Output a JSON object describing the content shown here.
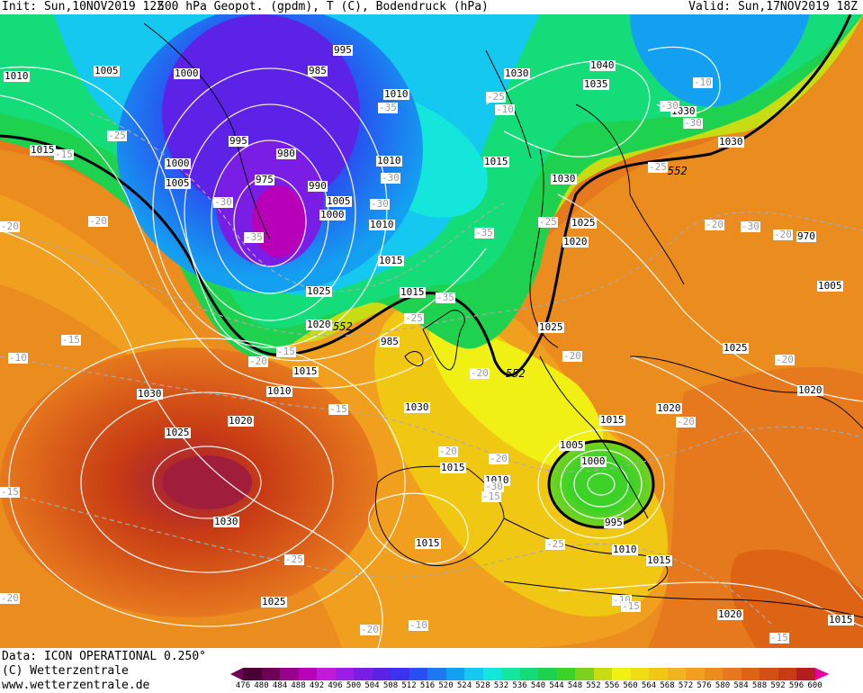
{
  "header": {
    "init": "Init: Sun,10NOV2019 12Z",
    "title": "500 hPa Geopot. (gpdm), T (C), Bodendruck (hPa)",
    "valid": "Valid: Sun,17NOV2019 18Z"
  },
  "footer": {
    "data_line": "Data: ICON OPERATIONAL 0.250°",
    "copyright": "(C) Wetterzentrale",
    "url": "www.wetterzentrale.de"
  },
  "legend": {
    "values": [
      "476",
      "480",
      "484",
      "488",
      "492",
      "496",
      "500",
      "504",
      "508",
      "512",
      "516",
      "520",
      "524",
      "528",
      "532",
      "536",
      "540",
      "544",
      "548",
      "552",
      "556",
      "560",
      "564",
      "568",
      "572",
      "576",
      "580",
      "584",
      "588",
      "592",
      "596",
      "600"
    ],
    "colors": [
      "#4b0033",
      "#6e0058",
      "#96008c",
      "#b800b8",
      "#c218d8",
      "#9b1ee6",
      "#7a1ee6",
      "#5c22e6",
      "#3c32f0",
      "#2850f0",
      "#1e78f0",
      "#14a0f0",
      "#14c8f0",
      "#14e6dc",
      "#14e6a0",
      "#14dc78",
      "#1ed250",
      "#3cd228",
      "#7ad21e",
      "#c8dc14",
      "#f0f014",
      "#f0dc14",
      "#f0c814",
      "#f0b41e",
      "#f0a01e",
      "#eb8c1e",
      "#e6781e",
      "#dc6414",
      "#d25014",
      "#c83c14",
      "#b41e1e",
      "#a01e3c"
    ],
    "left_arrow_color": "#6e0058",
    "right_arrow_color": "#e600a0"
  },
  "map": {
    "pressure_labels": [
      "1010",
      "1005",
      "1000",
      "995",
      "985",
      "1010",
      "1030",
      "1040",
      "1035",
      "1030",
      "1015",
      "995",
      "980",
      "1010",
      "1000",
      "1005",
      "975",
      "990",
      "1005",
      "1000",
      "1010",
      "1015",
      "1015",
      "1030",
      "1025",
      "1020",
      "1030",
      "1025",
      "1015",
      "970",
      "1020",
      "985",
      "1025",
      "1015",
      "1005",
      "1030",
      "1010",
      "1020",
      "1030",
      "1025",
      "1025",
      "1020",
      "1020",
      "1015",
      "1010",
      "1005",
      "1000",
      "1015",
      "1030",
      "995",
      "1015",
      "1010",
      "1015",
      "1025",
      "1020",
      "1015",
      "1020",
      "1015"
    ],
    "temperature_labels": [
      "-25",
      "-35",
      "-30",
      "-30",
      "-30",
      "-35",
      "-25",
      "-35",
      "-25",
      "-20",
      "-30",
      "-25",
      "-30",
      "-20",
      "-35",
      "-30",
      "-25",
      "-20",
      "-20",
      "-20",
      "-20",
      "-20",
      "-20",
      "-15",
      "-10",
      "-15",
      "-20",
      "-15",
      "-25",
      "-20",
      "-15",
      "-30",
      "-15",
      "-10",
      "-25",
      "-20",
      "-10",
      "-20",
      "-15",
      "-15",
      "-20",
      "-15",
      "-10",
      "-10"
    ],
    "contour_labels": [
      "552",
      "552",
      "552"
    ]
  }
}
